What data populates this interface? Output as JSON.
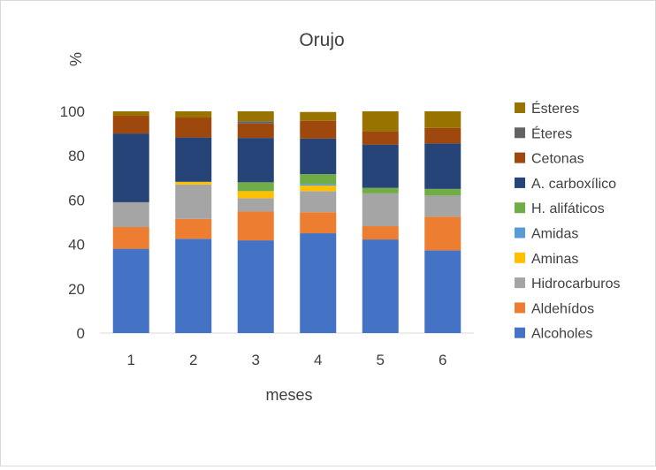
{
  "chart_data": {
    "type": "bar",
    "stacked": true,
    "title": "Orujo",
    "xlabel": "meses",
    "ylabel": "%",
    "ylim": [
      0,
      100
    ],
    "yticks": [
      0,
      20,
      40,
      60,
      80,
      100
    ],
    "grid": false,
    "legend_position": "right",
    "categories": [
      "1",
      "2",
      "3",
      "4",
      "5",
      "6"
    ],
    "series": [
      {
        "name": "Alcoholes",
        "color": "#4472c4",
        "values": [
          38,
          42.5,
          41.8,
          45,
          42.2,
          37.3
        ]
      },
      {
        "name": " Aldehídos",
        "color": "#ed7d31",
        "values": [
          9.8,
          9,
          13,
          9.5,
          6,
          15.2
        ]
      },
      {
        "name": "Hidrocarburos",
        "color": "#a5a5a5",
        "values": [
          11.2,
          15.5,
          6,
          9.5,
          14.8,
          9.5
        ]
      },
      {
        "name": "Aminas",
        "color": "#ffc000",
        "values": [
          0,
          1.2,
          3.2,
          2.5,
          0,
          0
        ]
      },
      {
        "name": "Amidas",
        "color": "#5b9bd5",
        "values": [
          0,
          0,
          0,
          0.7,
          0,
          0
        ]
      },
      {
        "name": "H. alifáticos",
        "color": "#70ad47",
        "values": [
          0,
          0,
          4,
          4.5,
          2.5,
          3
        ]
      },
      {
        "name": "A. carboxílico",
        "color": "#264478",
        "values": [
          31,
          20,
          20,
          16,
          19.5,
          20.5
        ]
      },
      {
        "name": "Cetonas",
        "color": "#9e480e",
        "values": [
          8,
          9,
          6.5,
          8,
          6,
          7
        ]
      },
      {
        "name": "Éteres",
        "color": "#636363",
        "values": [
          0,
          0,
          1,
          0,
          0,
          0
        ]
      },
      {
        "name": "Ésteres",
        "color": "#997300",
        "values": [
          2,
          2.8,
          4.5,
          4,
          9,
          7.5
        ]
      }
    ]
  }
}
